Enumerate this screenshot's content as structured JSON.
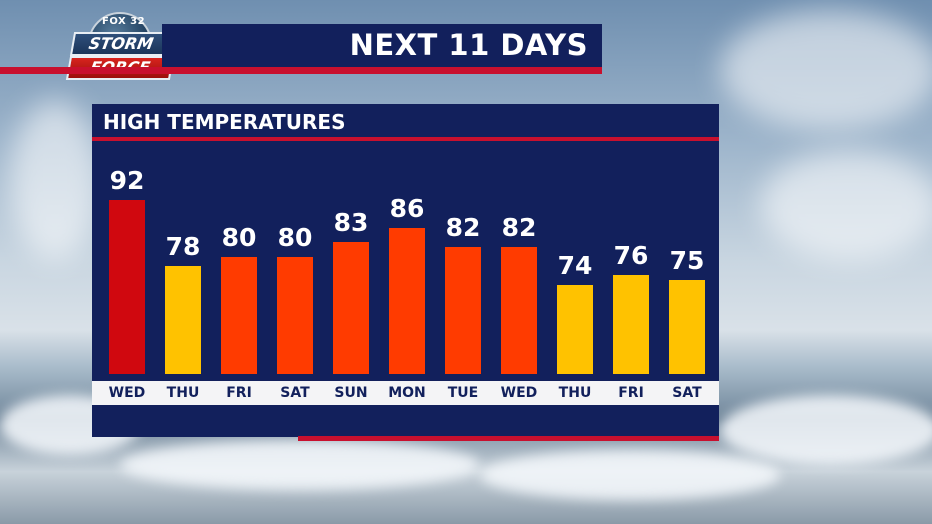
{
  "brand": {
    "fox_label": "FOX 32",
    "storm_label": "STORM",
    "force_label": "FORCE"
  },
  "title": "NEXT 11 DAYS",
  "colors": {
    "navy": "#12205c",
    "accent_red": "#c8102e",
    "hot": "#d0080f",
    "warm": "#ff3b00",
    "mild": "#ffc200"
  },
  "chart_data": {
    "type": "bar",
    "title": "HIGH TEMPERATURES",
    "categories": [
      "WED",
      "THU",
      "FRI",
      "SAT",
      "SUN",
      "MON",
      "TUE",
      "WED",
      "THU",
      "FRI",
      "SAT"
    ],
    "values": [
      92,
      78,
      80,
      80,
      83,
      86,
      82,
      82,
      74,
      76,
      75
    ],
    "bar_colors": [
      "#d0080f",
      "#ffc200",
      "#ff3b00",
      "#ff3b00",
      "#ff3b00",
      "#ff3b00",
      "#ff3b00",
      "#ff3b00",
      "#ffc200",
      "#ffc200",
      "#ffc200"
    ],
    "xlabel": "",
    "ylabel": "",
    "grid": false,
    "legend": "none"
  }
}
